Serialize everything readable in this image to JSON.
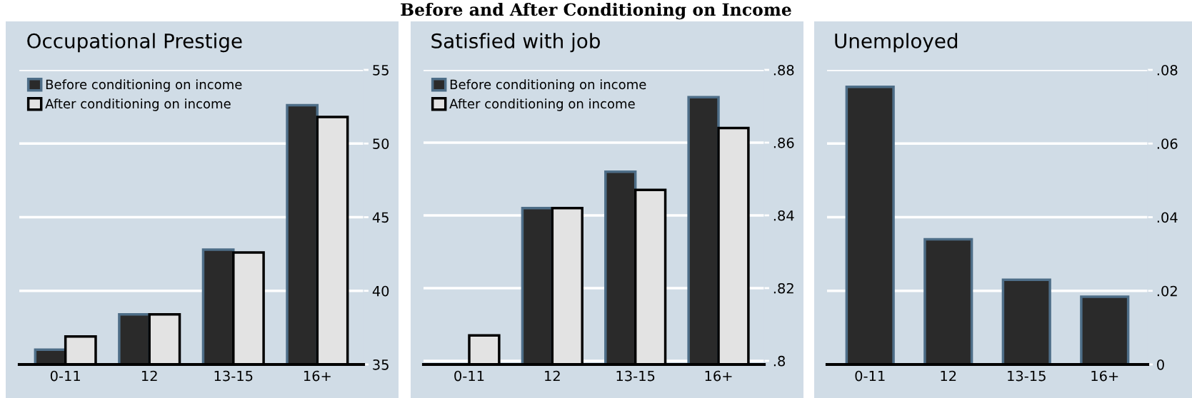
{
  "chart_data": [
    {
      "type": "bar",
      "title": "Occupational Prestige",
      "annotations": [
        "Before and After Conditioning on Income"
      ],
      "categories": [
        "0-11",
        "12",
        "13-15",
        "16+"
      ],
      "series": [
        {
          "name": "Before conditioning on income",
          "color": "#2a2a2a",
          "values": [
            36.0,
            38.4,
            42.8,
            52.6
          ]
        },
        {
          "name": "After conditioning on income",
          "color": "#e3e3e3",
          "values": [
            36.9,
            38.4,
            42.6,
            51.8
          ]
        }
      ],
      "ylim": [
        35,
        55
      ],
      "yticks": [
        35,
        40,
        45,
        50,
        55
      ],
      "grid": "y",
      "legend": "top left"
    },
    {
      "type": "bar",
      "title": "Satisfied with job",
      "categories": [
        "0-11",
        "12",
        "13-15",
        "16+"
      ],
      "series": [
        {
          "name": "Before conditioning on income",
          "color": "#2a2a2a",
          "values": [
            null,
            0.842,
            0.852,
            0.8725
          ]
        },
        {
          "name": "After conditioning on income",
          "color": "#e3e3e3",
          "values": [
            0.807,
            0.842,
            0.847,
            0.864
          ]
        }
      ],
      "ylim": [
        0.799,
        0.88
      ],
      "yticks": [
        {
          "value": 0.8,
          "label": ".8"
        },
        {
          "value": 0.82,
          "label": ".82"
        },
        {
          "value": 0.84,
          "label": ".84"
        },
        {
          "value": 0.86,
          "label": ".86"
        },
        {
          "value": 0.88,
          "label": ".88"
        }
      ],
      "grid": "y",
      "legend": "top left"
    },
    {
      "type": "bar",
      "title": "Unemployed",
      "categories": [
        "0-11",
        "12",
        "13-15",
        "16+"
      ],
      "series": [
        {
          "color": "#2a2a2a",
          "values": [
            0.0754,
            0.034,
            0.023,
            0.0184
          ]
        }
      ],
      "ylim": [
        0,
        0.08
      ],
      "yticks": [
        0,
        {
          "value": 0.02,
          "label": ".02"
        },
        {
          "value": 0.04,
          "label": ".04"
        },
        {
          "value": 0.06,
          "label": ".06"
        },
        {
          "value": 0.08,
          "label": ".08"
        }
      ],
      "grid": "y"
    }
  ]
}
